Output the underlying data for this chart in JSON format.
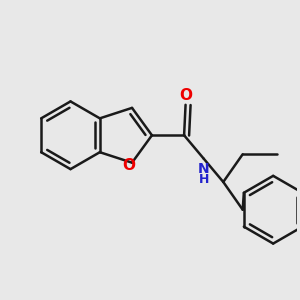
{
  "background_color": "#e8e8e8",
  "bond_color": "#1a1a1a",
  "bond_width": 1.8,
  "atom_O_color": "#ee0000",
  "atom_N_color": "#2222cc",
  "font_size_O": 11,
  "font_size_N": 10,
  "fig_width": 3.0,
  "fig_height": 3.0,
  "dpi": 100,
  "xlim": [
    0.0,
    10.0
  ],
  "ylim": [
    0.0,
    10.0
  ]
}
